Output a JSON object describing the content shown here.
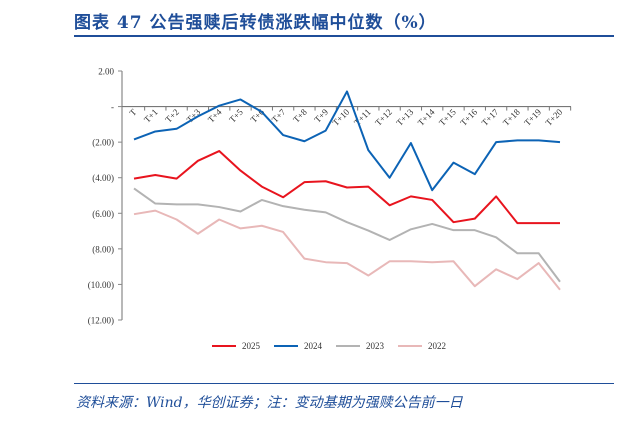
{
  "title": "图表 47   公告强赎后转债涨跌幅中位数（%）",
  "source": "资料来源：Wind，华创证券；注：变动基期为强赎公告前一日",
  "chart_data": {
    "type": "line",
    "categories": [
      "T",
      "T+1",
      "T+2",
      "T+3",
      "T+4",
      "T+5",
      "T+6",
      "T+7",
      "T+8",
      "T+9",
      "T+10",
      "T+11",
      "T+12",
      "T+13",
      "T+14",
      "T+15",
      "T+16",
      "T+17",
      "T+18",
      "T+19",
      "T+20"
    ],
    "ylim": [
      -12,
      2
    ],
    "yticks": [
      2,
      0,
      -2,
      -4,
      -6,
      -8,
      -10,
      -12
    ],
    "ytick_labels": [
      "2.00",
      "-",
      "(2.00)",
      "(4.00)",
      "(6.00)",
      "(8.00)",
      "(10.00)",
      "(12.00)"
    ],
    "grid": false,
    "legend_placement": "bottom",
    "series": [
      {
        "name": "2025",
        "color": "#e8141e",
        "values": [
          -4.05,
          -3.85,
          -4.05,
          -3.05,
          -2.5,
          -3.6,
          -4.5,
          -5.1,
          -4.25,
          -4.2,
          -4.55,
          -4.5,
          -5.55,
          -5.05,
          -5.25,
          -6.5,
          -6.3,
          -5.05,
          -6.55,
          -6.55,
          -6.55
        ]
      },
      {
        "name": "2024",
        "color": "#0c63b5",
        "values": [
          -1.85,
          -1.4,
          -1.25,
          -0.55,
          0.05,
          0.4,
          -0.3,
          -1.6,
          -1.95,
          -1.35,
          0.85,
          -2.45,
          -4.0,
          -2.05,
          -4.7,
          -3.15,
          -3.8,
          -2.0,
          -1.9,
          -1.9,
          -2.0
        ]
      },
      {
        "name": "2023",
        "color": "#b3b3b3",
        "values": [
          -4.6,
          -5.45,
          -5.5,
          -5.5,
          -5.65,
          -5.9,
          -5.25,
          -5.6,
          -5.8,
          -5.95,
          -6.5,
          -6.97,
          -7.5,
          -6.9,
          -6.6,
          -6.95,
          -6.95,
          -7.35,
          -8.25,
          -8.25,
          -9.85
        ]
      },
      {
        "name": "2022",
        "color": "#e8b8b8",
        "values": [
          -6.05,
          -5.85,
          -6.35,
          -7.15,
          -6.35,
          -6.85,
          -6.7,
          -7.05,
          -8.55,
          -8.75,
          -8.8,
          -9.5,
          -8.7,
          -8.7,
          -8.75,
          -8.7,
          -10.1,
          -9.15,
          -9.7,
          -8.8,
          -10.3
        ]
      }
    ]
  }
}
